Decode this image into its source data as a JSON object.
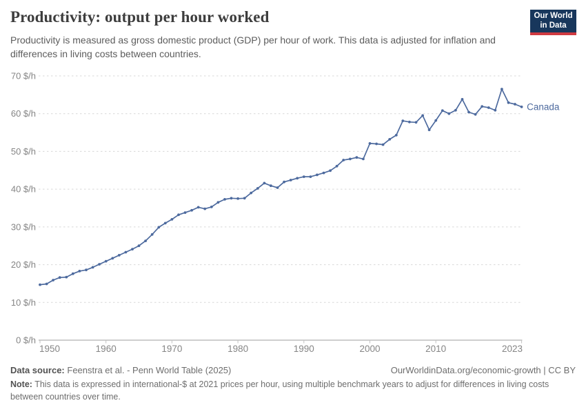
{
  "header": {
    "title": "Productivity: output per hour worked",
    "subtitle": "Productivity is measured as gross domestic product (GDP) per hour of work. This data is adjusted for inflation and differences in living costs between countries.",
    "logo": {
      "line1": "Our World",
      "line2": "in Data",
      "bg_color": "#18375c",
      "accent_color": "#cf3a41"
    }
  },
  "chart_data": {
    "type": "line",
    "title": "Productivity: output per hour worked",
    "entity": "Canada",
    "unit": "$/h",
    "ylabel": "",
    "xlabel": "",
    "ylim": [
      0,
      70
    ],
    "yticks": [
      0,
      10,
      20,
      30,
      40,
      50,
      60,
      70
    ],
    "xticks": [
      1950,
      1960,
      1970,
      1980,
      1990,
      2000,
      2010,
      2023
    ],
    "grid": "horizontal-dashed",
    "legend_position": "end-of-line-label",
    "line_color": "#4d6a9e",
    "label_color": "#4d6a9e",
    "grid_color": "#d7d7d7",
    "axis_color": "#9e9e9e",
    "tick_color": "#c2c2c2",
    "tick_label_color": "#858585",
    "x": [
      1950,
      1951,
      1952,
      1953,
      1954,
      1955,
      1956,
      1957,
      1958,
      1959,
      1960,
      1961,
      1962,
      1963,
      1964,
      1965,
      1966,
      1967,
      1968,
      1969,
      1970,
      1971,
      1972,
      1973,
      1974,
      1975,
      1976,
      1977,
      1978,
      1979,
      1980,
      1981,
      1982,
      1983,
      1984,
      1985,
      1986,
      1987,
      1988,
      1989,
      1990,
      1991,
      1992,
      1993,
      1994,
      1995,
      1996,
      1997,
      1998,
      1999,
      2000,
      2001,
      2002,
      2003,
      2004,
      2005,
      2006,
      2007,
      2008,
      2009,
      2010,
      2011,
      2012,
      2013,
      2014,
      2015,
      2016,
      2017,
      2018,
      2019,
      2020,
      2021,
      2022,
      2023
    ],
    "series": [
      {
        "name": "Canada",
        "values": [
          14.7,
          14.9,
          15.9,
          16.6,
          16.7,
          17.6,
          18.3,
          18.6,
          19.3,
          20.1,
          20.9,
          21.7,
          22.5,
          23.3,
          24.1,
          25.0,
          26.3,
          28.0,
          29.9,
          31.0,
          32.0,
          33.2,
          33.8,
          34.4,
          35.2,
          34.8,
          35.3,
          36.5,
          37.3,
          37.6,
          37.5,
          37.6,
          39.0,
          40.2,
          41.6,
          40.9,
          40.4,
          41.9,
          42.4,
          42.9,
          43.3,
          43.3,
          43.8,
          44.3,
          44.9,
          46.1,
          47.7,
          48.0,
          48.4,
          48.0,
          52.1,
          52.0,
          51.8,
          53.2,
          54.3,
          58.1,
          57.8,
          57.7,
          59.5,
          55.7,
          58.2,
          60.8,
          60.0,
          60.9,
          63.8,
          60.4,
          59.8,
          61.9,
          61.6,
          60.9,
          66.5,
          62.9,
          62.5,
          61.8
        ]
      }
    ]
  },
  "footer": {
    "data_source_label": "Data source:",
    "data_source_text": "Feenstra et al. - Penn World Table (2025)",
    "credit": "OurWorldinData.org/economic-growth | CC BY",
    "note_label": "Note:",
    "note_text": "This data is expressed in international-$ at 2021 prices per hour, using multiple benchmark years to adjust for differences in living costs between countries over time."
  }
}
